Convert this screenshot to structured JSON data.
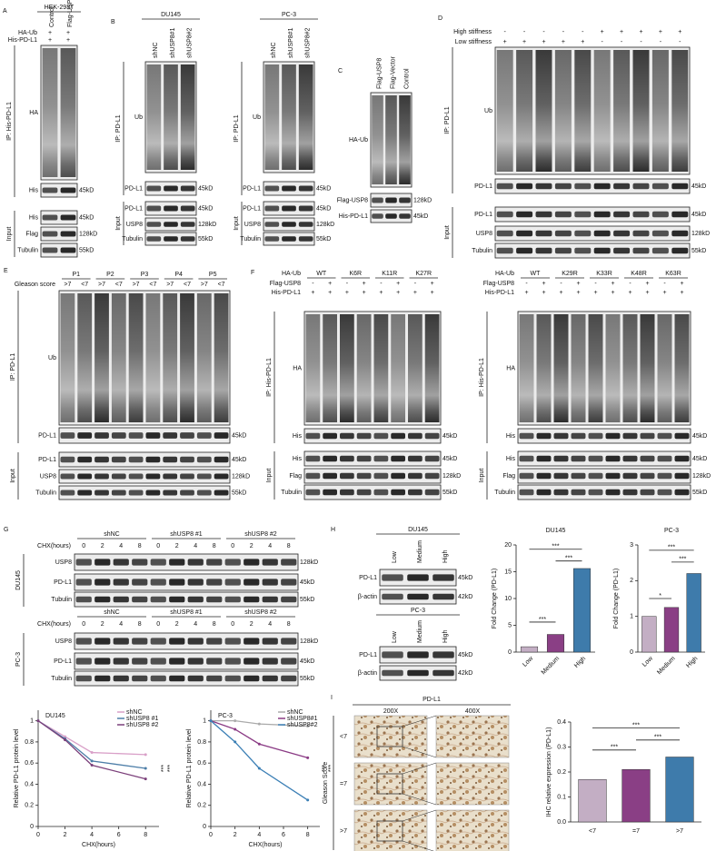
{
  "panels": [
    {
      "letter": "A",
      "groups": [
        {
          "title": "HEK-293T",
          "lanes": [
            "Control",
            "Flag-USP8"
          ],
          "treatments": [
            {
              "label": "HA-Ub",
              "marks": [
                "+",
                "+"
              ]
            },
            {
              "label": "His-PD-L1",
              "marks": [
                "+",
                "+"
              ]
            }
          ],
          "ip": "IP: His-PD-L1",
          "ip_blots": [
            {
              "label": "HA"
            },
            {
              "label": "His",
              "size": "45kD"
            }
          ],
          "input": "Input",
          "input_blots": [
            {
              "label": "His",
              "size": "45kD"
            },
            {
              "label": "Flag",
              "size": "128kD"
            },
            {
              "label": "Tubulin",
              "size": "55kD"
            }
          ]
        }
      ]
    },
    {
      "letter": "B",
      "groups": [
        {
          "title": "DU145",
          "lanes": [
            "shNC",
            "shUSP8#1",
            "shUSP8#2"
          ],
          "ip": "IP: PD-L1",
          "ip_blots": [
            {
              "label": "Ub"
            },
            {
              "label": "PD-L1",
              "size": "45kD"
            }
          ],
          "input": "Input",
          "input_blots": [
            {
              "label": "PD-L1",
              "size": "45kD"
            },
            {
              "label": "USP8",
              "size": "128kD"
            },
            {
              "label": "Tubulin",
              "size": "55kD"
            }
          ]
        },
        {
          "title": "PC-3",
          "lanes": [
            "shNC",
            "shUSP8#1",
            "shUSP8#2"
          ],
          "ip": "IP: PD-L1",
          "ip_blots": [
            {
              "label": "Ub"
            },
            {
              "label": "PD-L1",
              "size": "45kD"
            }
          ],
          "input": "Input",
          "input_blots": [
            {
              "label": "PD-L1",
              "size": "45kD"
            },
            {
              "label": "USP8",
              "size": "128kD"
            },
            {
              "label": "Tubulin",
              "size": "55kD"
            }
          ]
        }
      ]
    },
    {
      "letter": "C",
      "groups": [
        {
          "lanes": [
            "Flag-USP8",
            "Flag-Vector",
            "Control"
          ],
          "ip_blots": [
            {
              "label": "HA-Ub"
            }
          ],
          "input_blots": [
            {
              "label": "Flag-USP8",
              "size": "128kD"
            },
            {
              "label": "His-PD-L1",
              "size": "45kD"
            }
          ]
        }
      ]
    },
    {
      "letter": "D",
      "groups": [
        {
          "treatments": [
            {
              "label": "High stiffness",
              "marks": [
                "-",
                "-",
                "-",
                "-",
                "-",
                "+",
                "+",
                "+",
                "+",
                "+"
              ]
            },
            {
              "label": "Low stiffness",
              "marks": [
                "+",
                "+",
                "+",
                "+",
                "+",
                "-",
                "-",
                "-",
                "-",
                "-"
              ]
            }
          ],
          "ip": "IP: PD-L1",
          "ip_blots": [
            {
              "label": "Ub"
            },
            {
              "label": "PD-L1",
              "size": "45kD"
            }
          ],
          "input": "Input",
          "input_blots": [
            {
              "label": "PD-L1",
              "size": "45kD"
            },
            {
              "label": "USP8",
              "size": "128kD"
            },
            {
              "label": "Tubulin",
              "size": "55kD"
            }
          ]
        }
      ]
    },
    {
      "letter": "E",
      "groups": [
        {
          "lane_groups": [
            "P1",
            "P2",
            "P3",
            "P4",
            "P5"
          ],
          "treatments": [
            {
              "label": "Gleason score",
              "marks": [
                ">7",
                "<7",
                ">7",
                "<7",
                ">7",
                "<7",
                ">7",
                "<7",
                ">7",
                "<7"
              ]
            }
          ],
          "ip": "IP: PD-L1",
          "ip_blots": [
            {
              "label": "Ub"
            },
            {
              "label": "PD-L1",
              "size": "45kD"
            }
          ],
          "input": "Input",
          "input_blots": [
            {
              "label": "PD-L1",
              "size": "45kD"
            },
            {
              "label": "USP8",
              "size": "128kD"
            },
            {
              "label": "Tubulin",
              "size": "55kD"
            }
          ]
        }
      ]
    },
    {
      "letter": "F",
      "groups": [
        {
          "lane_group_label": "HA-Ub",
          "lane_groups": [
            "WT",
            "K6R",
            "K11R",
            "K27R"
          ],
          "treatments": [
            {
              "label": "Flag-USP8",
              "marks": [
                "-",
                "+",
                "-",
                "+",
                "-",
                "+",
                "-",
                "+"
              ]
            },
            {
              "label": "His-PD-L1",
              "marks": [
                "+",
                "+",
                "+",
                "+",
                "+",
                "+",
                "+",
                "+"
              ]
            }
          ],
          "ip": "IP: His-PD-L1",
          "ip_blots": [
            {
              "label": "HA"
            },
            {
              "label": "His",
              "size": "45kD"
            }
          ],
          "input": "Input",
          "input_blots": [
            {
              "label": "His",
              "size": "45kD"
            },
            {
              "label": "Flag",
              "size": "128kD"
            },
            {
              "label": "Tubulin",
              "size": "55kD"
            }
          ]
        },
        {
          "lane_group_label": "HA-Ub",
          "lane_groups": [
            "WT",
            "K29R",
            "K33R",
            "K48R",
            "K63R"
          ],
          "treatments": [
            {
              "label": "Flag-USP8",
              "marks": [
                "-",
                "+",
                "-",
                "+",
                "-",
                "+",
                "-",
                "+",
                "-",
                "+"
              ]
            },
            {
              "label": "His-PD-L1",
              "marks": [
                "+",
                "+",
                "+",
                "+",
                "+",
                "+",
                "+",
                "+",
                "+",
                "+"
              ]
            }
          ],
          "ip": "IP: His-PD-L1",
          "ip_blots": [
            {
              "label": "HA"
            },
            {
              "label": "His",
              "size": "45kD"
            }
          ],
          "input": "Input",
          "input_blots": [
            {
              "label": "His",
              "size": "45kD"
            },
            {
              "label": "Flag",
              "size": "128kD"
            },
            {
              "label": "Tubulin",
              "size": "55kD"
            }
          ]
        }
      ]
    },
    {
      "letter": "G",
      "groups": [
        {
          "side_label": "DU145",
          "lane_groups": [
            "shNC",
            "shUSP8 #1",
            "shUSP8 #2"
          ],
          "treatments": [
            {
              "label": "CHX(hours)",
              "marks": [
                "0",
                "2",
                "4",
                "8",
                "0",
                "2",
                "4",
                "8",
                "0",
                "2",
                "4",
                "8"
              ]
            }
          ],
          "blots": [
            {
              "label": "USP8",
              "size": "128kD"
            },
            {
              "label": "PD-L1",
              "size": "45kD"
            },
            {
              "label": "Tubulin",
              "size": "55kD"
            }
          ]
        },
        {
          "side_label": "PC-3",
          "lane_groups": [
            "shNC",
            "shUSP8 #1",
            "shUSP8 #2"
          ],
          "treatments": [
            {
              "label": "CHX(hours)",
              "marks": [
                "0",
                "2",
                "4",
                "8",
                "0",
                "2",
                "4",
                "8",
                "0",
                "2",
                "4",
                "8"
              ]
            }
          ],
          "blots": [
            {
              "label": "USP8",
              "size": "128kD"
            },
            {
              "label": "PD-L1",
              "size": "45kD"
            },
            {
              "label": "Tubulin",
              "size": "55kD"
            }
          ]
        }
      ]
    },
    {
      "letter": "H",
      "groups": [
        {
          "title": "DU145",
          "lanes": [
            "Low",
            "Medium",
            "High"
          ],
          "blots": [
            {
              "label": "PD-L1",
              "size": "45kD"
            },
            {
              "label": "β-actin",
              "size": "42kD"
            }
          ]
        },
        {
          "title": "PC-3",
          "lanes": [
            "Low",
            "Medium",
            "High"
          ],
          "blots": [
            {
              "label": "PD-L1",
              "size": "45kD"
            },
            {
              "label": "β-actin",
              "size": "42kD"
            }
          ]
        }
      ]
    },
    {
      "letter": "I",
      "title": "PD-L1",
      "columns": [
        "200X",
        "400X"
      ],
      "axis_label": "Gleason Score",
      "rows": [
        "<7",
        "=7",
        ">7"
      ]
    }
  ],
  "chart_data": [
    {
      "type": "line",
      "title": "DU145",
      "xlabel": "CHX(hours)",
      "ylabel": "Relative PD-L1 protein level",
      "x": [
        0,
        2,
        4,
        8
      ],
      "xlim": [
        0,
        9
      ],
      "xticks": [
        0,
        2,
        4,
        6,
        8
      ],
      "ylim": [
        0,
        1.1
      ],
      "yticks": [
        0,
        0.2,
        0.4,
        0.6,
        0.8,
        1
      ],
      "series": [
        {
          "name": "shNC",
          "color": "#d9a0c8",
          "values": [
            1,
            0.85,
            0.7,
            0.68
          ]
        },
        {
          "name": "shUSP8 #1",
          "color": "#4d7ea8",
          "values": [
            1,
            0.83,
            0.62,
            0.55
          ]
        },
        {
          "name": "shUSP8 #2",
          "color": "#7b3f7a",
          "values": [
            1,
            0.82,
            0.58,
            0.45
          ]
        }
      ],
      "annotations": [
        "***",
        "***"
      ]
    },
    {
      "type": "line",
      "title": "PC-3",
      "xlabel": "CHX(hours)",
      "ylabel": "Relative PD-L1 protein level",
      "x": [
        0,
        2,
        4,
        8
      ],
      "xlim": [
        0,
        9
      ],
      "xticks": [
        0,
        2,
        4,
        6,
        8
      ],
      "ylim": [
        0,
        1.1
      ],
      "yticks": [
        0,
        0.2,
        0.4,
        0.6,
        0.8,
        1
      ],
      "series": [
        {
          "name": "shNC",
          "color": "#aaaaaa",
          "values": [
            1,
            1,
            0.97,
            0.95
          ]
        },
        {
          "name": "shUSP8#1",
          "color": "#8a3a84",
          "values": [
            1,
            0.92,
            0.78,
            0.65
          ]
        },
        {
          "name": "shUSP8#2",
          "color": "#3b7fb5",
          "values": [
            1,
            0.8,
            0.55,
            0.25
          ]
        }
      ],
      "annotations": [
        "***",
        "***"
      ]
    },
    {
      "type": "bar",
      "title": "DU145",
      "ylabel": "Fold Change (PD-L1)",
      "categories": [
        "Low",
        "Medium",
        "High"
      ],
      "values": [
        1,
        3.3,
        15.6
      ],
      "colors": [
        "#c3aec4",
        "#8a3f85",
        "#3e7bab"
      ],
      "ylim": [
        0,
        20
      ],
      "yticks": [
        0,
        5,
        10,
        15,
        20
      ],
      "annotations": [
        "***",
        "***",
        "***"
      ]
    },
    {
      "type": "bar",
      "title": "PC-3",
      "ylabel": "Fold Change (PD-L1)",
      "categories": [
        "Low",
        "Medium",
        "High"
      ],
      "values": [
        1,
        1.25,
        2.2
      ],
      "colors": [
        "#c3aec4",
        "#8a3f85",
        "#3e7bab"
      ],
      "ylim": [
        0,
        3
      ],
      "yticks": [
        0,
        1,
        2,
        3
      ],
      "annotations": [
        "*",
        "***",
        "***"
      ]
    },
    {
      "type": "bar",
      "ylabel": "IHC relative expression (PD-L1)",
      "categories": [
        "<7",
        "=7",
        ">7"
      ],
      "values": [
        0.17,
        0.21,
        0.26
      ],
      "colors": [
        "#c3aec4",
        "#8a3f85",
        "#3e7bab"
      ],
      "ylim": [
        0,
        0.4
      ],
      "yticks": [
        {
          "value": 0,
          "label": "0.0"
        },
        0.1,
        0.2,
        0.3,
        0.4
      ],
      "annotations": [
        "***",
        "***",
        "***"
      ]
    }
  ]
}
